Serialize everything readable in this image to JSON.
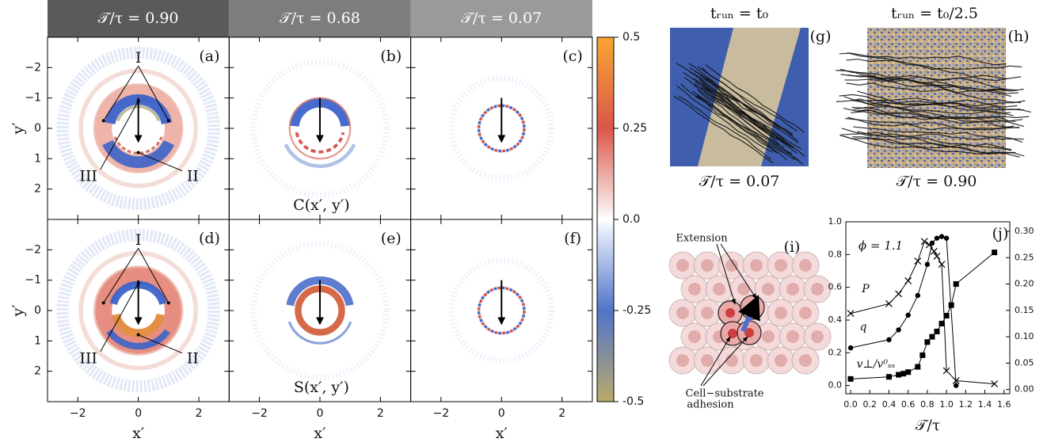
{
  "figure": {
    "columns": [
      {
        "header": "𝒯/τ = 0.90",
        "x_label": "x′"
      },
      {
        "header": "𝒯/τ = 0.68",
        "x_label": "x′"
      },
      {
        "header": "𝒯/τ = 0.07",
        "x_label": "x′"
      }
    ],
    "rows": [
      {
        "y_label": "y′",
        "map_label": "C(x′, y′)",
        "region_labels": [
          "I",
          "II",
          "III"
        ]
      },
      {
        "y_label": "y′",
        "map_label": "S(x′, y′)",
        "region_labels": [
          "I",
          "II",
          "III"
        ]
      }
    ],
    "panels": [
      "(a)",
      "(b)",
      "(c)",
      "(d)",
      "(e)",
      "(f)"
    ],
    "xlim": [
      -3,
      3
    ],
    "ylim": [
      3,
      -3
    ],
    "xticks": [
      {
        "value": -2,
        "label": "−2"
      },
      0,
      2
    ],
    "yticks": [
      {
        "value": -2,
        "label": "−2"
      },
      {
        "value": -1,
        "label": "−1"
      },
      0,
      1,
      2
    ],
    "colorbar": {
      "lim": [
        -0.5,
        0.5
      ],
      "ticks": [
        0.5,
        0.25,
        {
          "value": 0,
          "label": "0.0"
        },
        -0.25,
        -0.5
      ]
    }
  },
  "snapshots": [
    {
      "title": "tᵣᵤₙ = t₀",
      "label": "(g)",
      "caption": "𝒯/τ = 0.07"
    },
    {
      "title": "tᵣᵤₙ = t₀/2.5",
      "label": "(h)",
      "caption": "𝒯/τ = 0.90"
    }
  ],
  "schematic": {
    "label": "(i)",
    "extension": "Extension",
    "adhesion_lines": [
      "Cell−substrate",
      "adhesion"
    ]
  },
  "chart_data": {
    "type": "line",
    "label": "(j)",
    "annotation": "ϕ = 1.1",
    "x_label": "𝒯/τ",
    "xlim": [
      -0.05,
      1.66
    ],
    "ylim": [
      -0.05,
      1.0
    ],
    "y2lim": [
      -0.008,
      0.318
    ],
    "xticks": [
      {
        "value": 0,
        "label": "0.0"
      },
      0.2,
      0.4,
      0.6,
      0.8,
      {
        "value": 1,
        "label": "1.0"
      },
      1.2,
      1.4,
      1.6
    ],
    "yticks": [
      {
        "value": 0,
        "label": "0.0"
      },
      0.2,
      0.4,
      0.6,
      0.8,
      {
        "value": 1,
        "label": "1.0"
      }
    ],
    "y2ticks": [
      {
        "value": 0,
        "label": "0.00"
      },
      0.05,
      {
        "value": 0.1,
        "label": "0.10"
      },
      0.15,
      {
        "value": 0.2,
        "label": "0.20"
      },
      0.25,
      {
        "value": 0.3,
        "label": "0.30"
      }
    ],
    "series": [
      {
        "name": "P",
        "color": "#000000",
        "marker": "x",
        "x": [
          0.0,
          0.4,
          0.5,
          0.6,
          0.7,
          0.77,
          0.82,
          0.87,
          0.9,
          0.95,
          1.0,
          1.1,
          1.5
        ],
        "values": [
          0.44,
          0.5,
          0.56,
          0.64,
          0.76,
          0.88,
          0.86,
          0.82,
          0.79,
          0.74,
          0.09,
          0.03,
          0.01
        ]
      },
      {
        "name": "q",
        "color": "#000000",
        "marker": "o",
        "x": [
          0.0,
          0.4,
          0.5,
          0.6,
          0.7,
          0.8,
          0.85,
          0.9,
          0.95,
          1.0,
          1.1
        ],
        "values": [
          0.23,
          0.28,
          0.34,
          0.43,
          0.55,
          0.74,
          0.87,
          0.9,
          0.91,
          0.9,
          0.0
        ]
      },
      {
        "name": "v⊥/v⁰ₛₛ",
        "color": "#000000",
        "marker": "s",
        "axis": "y2",
        "x": [
          0.0,
          0.4,
          0.5,
          0.55,
          0.6,
          0.7,
          0.75,
          0.8,
          0.85,
          0.9,
          0.95,
          1.0,
          1.05,
          1.1,
          1.5
        ],
        "values": [
          0.02,
          0.024,
          0.028,
          0.03,
          0.033,
          0.043,
          0.065,
          0.09,
          0.1,
          0.11,
          0.125,
          0.14,
          0.16,
          0.2,
          0.26
        ]
      }
    ]
  }
}
